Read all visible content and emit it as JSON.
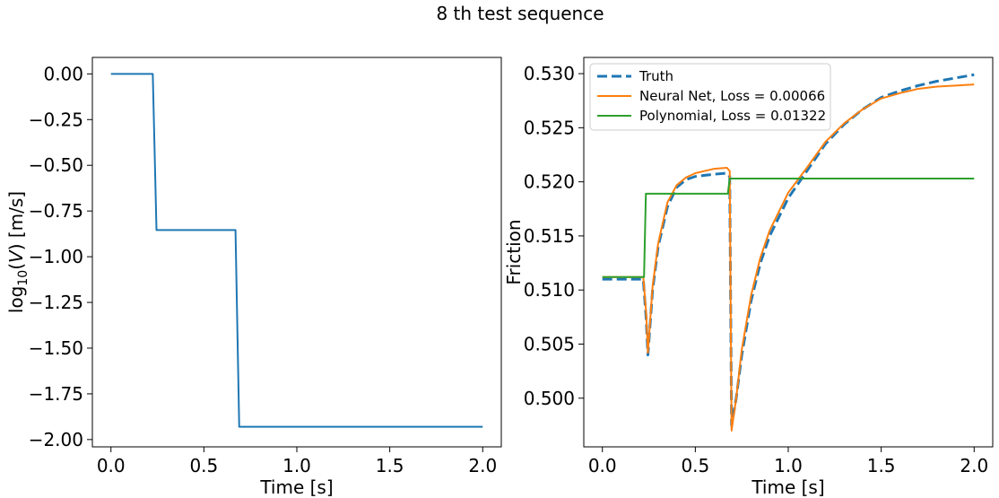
{
  "figure": {
    "suptitle": "8 th test sequence"
  },
  "chart_data": [
    {
      "type": "line",
      "xlabel": "Time [s]",
      "ylabel_parts": {
        "prefix": "log",
        "sub": "10",
        "middle": "(",
        "italic": "V",
        "suffix": ") [m/s]"
      },
      "xlim": [
        -0.1,
        2.1
      ],
      "ylim": [
        -2.04,
        0.09
      ],
      "xticks": [
        0.0,
        0.5,
        1.0,
        1.5,
        2.0
      ],
      "xtick_labels": [
        "0.0",
        "0.5",
        "1.0",
        "1.5",
        "2.0"
      ],
      "yticks": [
        0.0,
        -0.25,
        -0.5,
        -0.75,
        -1.0,
        -1.25,
        -1.5,
        -1.75,
        -2.0
      ],
      "ytick_labels": [
        "0.00",
        "−0.25",
        "−0.50",
        "−0.75",
        "−1.00",
        "−1.25",
        "−1.50",
        "−1.75",
        "−2.00"
      ],
      "grid": false,
      "series": [
        {
          "color": "#1f77b4",
          "style": "solid",
          "x": [
            0.0,
            0.225,
            0.245,
            0.67,
            0.69,
            2.0
          ],
          "y": [
            0.0,
            0.0,
            -0.854,
            -0.854,
            -1.93,
            -1.93
          ]
        }
      ]
    },
    {
      "type": "line",
      "xlabel": "Time [s]",
      "ylabel": "Friction",
      "xlim": [
        -0.1,
        2.1
      ],
      "ylim": [
        0.4955,
        0.5315
      ],
      "xticks": [
        0.0,
        0.5,
        1.0,
        1.5,
        2.0
      ],
      "xtick_labels": [
        "0.0",
        "0.5",
        "1.0",
        "1.5",
        "2.0"
      ],
      "yticks": [
        0.5,
        0.505,
        0.51,
        0.515,
        0.52,
        0.525,
        0.53
      ],
      "ytick_labels": [
        "0.500",
        "0.505",
        "0.510",
        "0.515",
        "0.520",
        "0.525",
        "0.530"
      ],
      "grid": false,
      "legend_position": "top-left",
      "series": [
        {
          "name": "Truth",
          "color": "#1f77b4",
          "style": "dashed",
          "x": [
            0.0,
            0.22,
            0.235,
            0.245,
            0.27,
            0.3,
            0.35,
            0.4,
            0.45,
            0.5,
            0.55,
            0.6,
            0.67,
            0.685,
            0.695,
            0.72,
            0.75,
            0.8,
            0.85,
            0.9,
            1.0,
            1.1,
            1.2,
            1.3,
            1.4,
            1.5,
            1.6,
            1.7,
            1.8,
            1.9,
            2.0
          ],
          "y": [
            0.511,
            0.511,
            0.5075,
            0.504,
            0.51,
            0.514,
            0.5177,
            0.5195,
            0.5202,
            0.5205,
            0.5206,
            0.5207,
            0.5208,
            0.5205,
            0.4975,
            0.5,
            0.504,
            0.509,
            0.5125,
            0.515,
            0.5185,
            0.521,
            0.5235,
            0.5253,
            0.5267,
            0.5278,
            0.5284,
            0.5289,
            0.5293,
            0.5296,
            0.5299
          ]
        },
        {
          "name": "Neural Net, Loss = 0.00066",
          "color": "#ff7f0e",
          "style": "solid",
          "x": [
            0.0,
            0.22,
            0.235,
            0.245,
            0.27,
            0.3,
            0.35,
            0.4,
            0.45,
            0.5,
            0.55,
            0.6,
            0.67,
            0.685,
            0.695,
            0.72,
            0.75,
            0.8,
            0.85,
            0.9,
            1.0,
            1.1,
            1.2,
            1.3,
            1.4,
            1.5,
            1.6,
            1.7,
            1.8,
            1.9,
            2.0
          ],
          "y": [
            0.5112,
            0.5112,
            0.508,
            0.5042,
            0.5103,
            0.5143,
            0.5181,
            0.5197,
            0.5204,
            0.5208,
            0.521,
            0.5212,
            0.5213,
            0.521,
            0.497,
            0.5,
            0.5045,
            0.5095,
            0.513,
            0.5155,
            0.519,
            0.5213,
            0.5237,
            0.5254,
            0.5267,
            0.5277,
            0.5282,
            0.5286,
            0.5288,
            0.5289,
            0.529
          ]
        },
        {
          "name": "Polynomial, Loss = 0.01322",
          "color": "#2ca02c",
          "style": "solid",
          "x": [
            0.0,
            0.224,
            0.234,
            0.675,
            0.685,
            2.0
          ],
          "y": [
            0.5112,
            0.5112,
            0.5189,
            0.5189,
            0.5203,
            0.5203
          ]
        }
      ]
    }
  ]
}
